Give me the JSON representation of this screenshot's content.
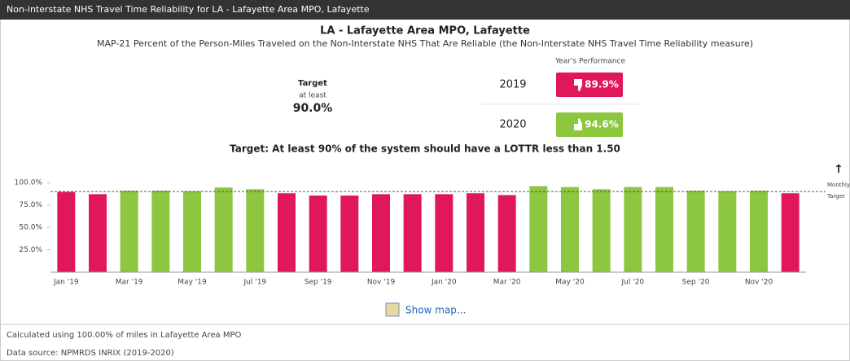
{
  "header": {
    "title": "Non-interstate NHS Travel Time Reliability for LA - Lafayette Area MPO, Lafayette"
  },
  "title": "LA - Lafayette Area MPO, Lafayette",
  "subtitle": "MAP-21 Percent of the Person-Miles Traveled on the Non-Interstate NHS That Are Reliable (the Non-Interstate NHS Travel Time Reliability measure)",
  "target": {
    "label": "Target",
    "qualifier": "at least",
    "value": "90.0%"
  },
  "performance": {
    "title": "Year's Performance",
    "rows": [
      {
        "year": "2019",
        "value": "89.9%",
        "status": "down"
      },
      {
        "year": "2020",
        "value": "94.6%",
        "status": "up"
      }
    ]
  },
  "target_statement": "Target: At least 90% of the system should have a LOTTR less than 1.50",
  "chart_data": {
    "type": "bar",
    "categories": [
      "Jan '19",
      null,
      "Mar '19",
      null,
      "May '19",
      null,
      "Jul '19",
      null,
      "Sep '19",
      null,
      "Nov '19",
      null,
      "Jan '20",
      null,
      "Mar '20",
      null,
      "May '20",
      null,
      "Jul '20",
      null,
      "Sep '20",
      null,
      "Nov '20",
      null
    ],
    "values": [
      89.5,
      87,
      91,
      91,
      90.5,
      94.5,
      92.5,
      88,
      85.5,
      85.5,
      87,
      87,
      87,
      88,
      86,
      96,
      95,
      92.5,
      95,
      95,
      91,
      90.5,
      91,
      88
    ],
    "colors": [
      "#e0185b",
      "#e0185b",
      "#8dc63f",
      "#8dc63f",
      "#8dc63f",
      "#8dc63f",
      "#8dc63f",
      "#e0185b",
      "#e0185b",
      "#e0185b",
      "#e0185b",
      "#e0185b",
      "#e0185b",
      "#e0185b",
      "#e0185b",
      "#8dc63f",
      "#8dc63f",
      "#8dc63f",
      "#8dc63f",
      "#8dc63f",
      "#8dc63f",
      "#8dc63f",
      "#8dc63f",
      "#e0185b"
    ],
    "ylim": [
      0,
      100
    ],
    "yticks": [
      {
        "value": 25,
        "label": "25.0%"
      },
      {
        "value": 50,
        "label": "50.0%"
      },
      {
        "value": 75,
        "label": "75.0%"
      },
      {
        "value": 100,
        "label": "100.0%"
      }
    ],
    "target_line": {
      "value": 90,
      "label_lines": [
        "Monthly",
        "Target"
      ]
    }
  },
  "link": "Show map...",
  "footer": {
    "coverage": "Calculated using 100.00% of miles in Lafayette Area MPO",
    "source": "Data source: NPMRDS INRIX (2019-2020)"
  }
}
